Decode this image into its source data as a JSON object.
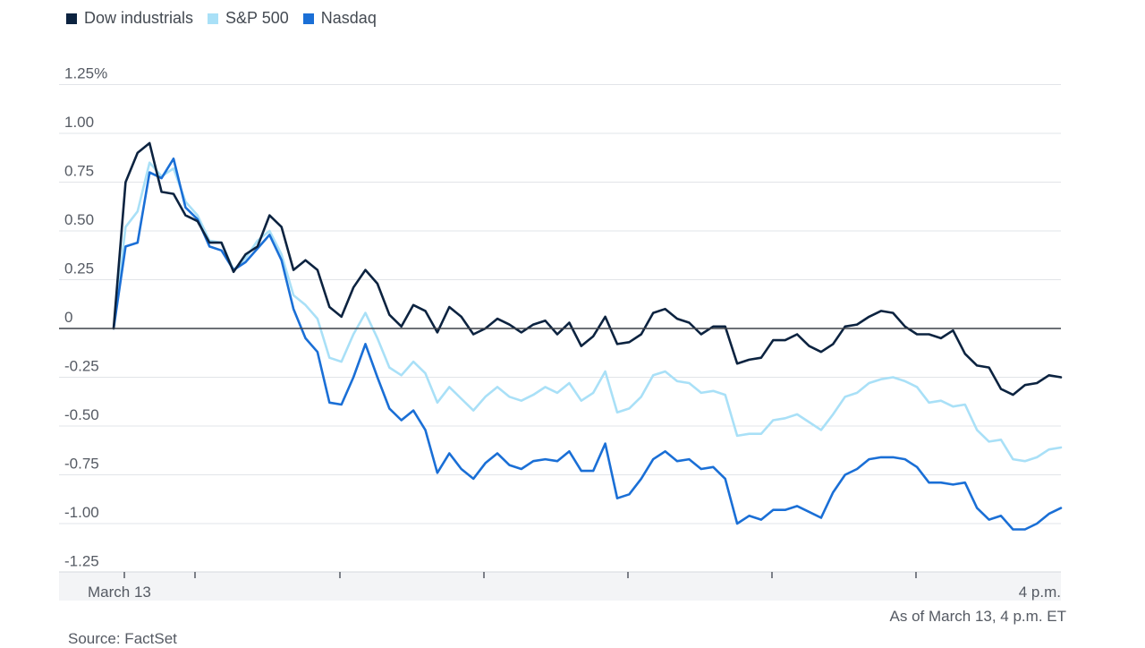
{
  "legend": [
    {
      "name": "Dow industrials",
      "color": "#0c2340"
    },
    {
      "name": "S&P 500",
      "color": "#a9e0f7"
    },
    {
      "name": "Nasdaq",
      "color": "#1a6fd6"
    }
  ],
  "as_of": "As of March 13, 4 p.m. ET",
  "source": "Source: FactSet",
  "chart_data": {
    "type": "line",
    "title": "",
    "xlabel": "",
    "ylabel": "",
    "x_tick_labels": [
      "March 13",
      "4 p.m."
    ],
    "y_tick_labels": [
      "1.25%",
      "1.00",
      "0.75",
      "0.50",
      "0.25",
      "0",
      "-0.25",
      "-0.50",
      "-0.75",
      "-1.00",
      "-1.25"
    ],
    "y_ticks": [
      1.25,
      1.0,
      0.75,
      0.5,
      0.25,
      0,
      -0.25,
      -0.5,
      -0.75,
      -1.0,
      -1.25
    ],
    "ylim": [
      -1.25,
      1.25
    ],
    "grid": true,
    "legend_position": "top-left",
    "series": [
      {
        "name": "Dow industrials",
        "color": "#0c2340",
        "values": [
          0,
          0.75,
          0.9,
          0.95,
          0.7,
          0.69,
          0.58,
          0.55,
          0.44,
          0.44,
          0.29,
          0.38,
          0.42,
          0.58,
          0.52,
          0.3,
          0.35,
          0.3,
          0.11,
          0.06,
          0.21,
          0.3,
          0.23,
          0.07,
          0.01,
          0.12,
          0.09,
          -0.02,
          0.11,
          0.06,
          -0.03,
          0.0,
          0.05,
          0.02,
          -0.02,
          0.02,
          0.04,
          -0.03,
          0.03,
          -0.09,
          -0.04,
          0.06,
          -0.08,
          -0.07,
          -0.03,
          0.08,
          0.1,
          0.05,
          0.03,
          -0.03,
          0.01,
          0.01,
          -0.18,
          -0.16,
          -0.15,
          -0.06,
          -0.06,
          -0.03,
          -0.09,
          -0.12,
          -0.08,
          0.01,
          0.02,
          0.06,
          0.09,
          0.08,
          0.01,
          -0.03,
          -0.03,
          -0.05,
          -0.01,
          -0.13,
          -0.19,
          -0.2,
          -0.31,
          -0.34,
          -0.29,
          -0.28,
          -0.24,
          -0.25
        ]
      },
      {
        "name": "S&P 500",
        "color": "#a9e0f7",
        "values": [
          0,
          0.52,
          0.6,
          0.85,
          0.78,
          0.82,
          0.65,
          0.58,
          0.45,
          0.44,
          0.3,
          0.36,
          0.45,
          0.5,
          0.38,
          0.17,
          0.12,
          0.05,
          -0.15,
          -0.17,
          -0.03,
          0.08,
          -0.05,
          -0.2,
          -0.24,
          -0.17,
          -0.23,
          -0.38,
          -0.3,
          -0.36,
          -0.42,
          -0.35,
          -0.3,
          -0.35,
          -0.37,
          -0.34,
          -0.3,
          -0.33,
          -0.28,
          -0.37,
          -0.33,
          -0.22,
          -0.43,
          -0.41,
          -0.35,
          -0.24,
          -0.22,
          -0.27,
          -0.28,
          -0.33,
          -0.32,
          -0.34,
          -0.55,
          -0.54,
          -0.54,
          -0.47,
          -0.46,
          -0.44,
          -0.48,
          -0.52,
          -0.44,
          -0.35,
          -0.33,
          -0.28,
          -0.26,
          -0.25,
          -0.27,
          -0.3,
          -0.38,
          -0.37,
          -0.4,
          -0.39,
          -0.52,
          -0.58,
          -0.57,
          -0.67,
          -0.68,
          -0.66,
          -0.62,
          -0.61
        ]
      },
      {
        "name": "Nasdaq",
        "color": "#1a6fd6",
        "values": [
          0,
          0.42,
          0.44,
          0.8,
          0.77,
          0.87,
          0.62,
          0.56,
          0.42,
          0.4,
          0.3,
          0.34,
          0.41,
          0.48,
          0.35,
          0.1,
          -0.05,
          -0.12,
          -0.38,
          -0.39,
          -0.25,
          -0.08,
          -0.25,
          -0.41,
          -0.47,
          -0.42,
          -0.52,
          -0.74,
          -0.64,
          -0.72,
          -0.77,
          -0.69,
          -0.64,
          -0.7,
          -0.72,
          -0.68,
          -0.67,
          -0.68,
          -0.63,
          -0.73,
          -0.73,
          -0.59,
          -0.87,
          -0.85,
          -0.77,
          -0.67,
          -0.63,
          -0.68,
          -0.67,
          -0.72,
          -0.71,
          -0.77,
          -1.0,
          -0.96,
          -0.98,
          -0.93,
          -0.93,
          -0.91,
          -0.94,
          -0.97,
          -0.84,
          -0.75,
          -0.72,
          -0.67,
          -0.66,
          -0.66,
          -0.67,
          -0.71,
          -0.79,
          -0.79,
          -0.8,
          -0.79,
          -0.92,
          -0.98,
          -0.96,
          -1.03,
          -1.03,
          -1.0,
          -0.95,
          -0.92
        ]
      }
    ]
  }
}
